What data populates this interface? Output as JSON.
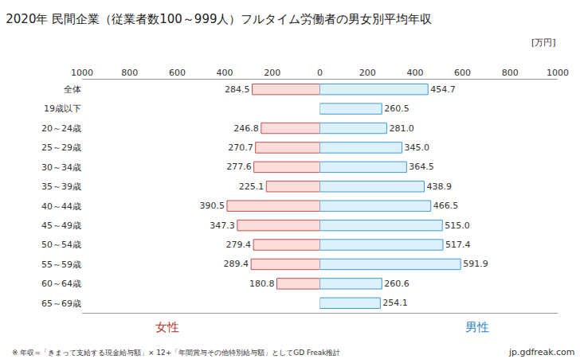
{
  "chart_data": {
    "type": "bar",
    "orientation": "horizontal",
    "title": "2020年 民間企業（従業者数100～999人）フルタイム労働者の男女別平均年収",
    "annotations": [
      "[万円]",
      "※ 年収=「きまって支給する現金給与額」× 12+「年間賞与その他特別給与額」としてGD Freak推計",
      "jp.gdfreak.com"
    ],
    "categories": [
      "全体",
      "19歳以下",
      "20～24歳",
      "25～29歳",
      "30～34歳",
      "35～39歳",
      "40～44歳",
      "45～49歳",
      "50～54歳",
      "55～59歳",
      "60～64歳",
      "65～69歳"
    ],
    "series": [
      {
        "name": "女性",
        "color": "#fadcda",
        "values": [
          284.5,
          null,
          246.8,
          270.7,
          277.6,
          225.1,
          390.5,
          347.3,
          279.4,
          289.4,
          180.8,
          null
        ],
        "value_labels": [
          "284.5",
          null,
          "246.8",
          "270.7",
          "277.6",
          "225.1",
          "390.5",
          "347.3",
          "279.4",
          "289.4",
          "180.8",
          null
        ]
      },
      {
        "name": "男性",
        "color": "#ddf1fb",
        "values": [
          454.7,
          260.5,
          281.0,
          345.0,
          364.5,
          438.9,
          466.5,
          515.0,
          517.4,
          591.9,
          260.6,
          254.1
        ],
        "value_labels": [
          "454.7",
          "260.5",
          "281.0",
          "345.0",
          "364.5",
          "438.9",
          "466.5",
          "515.0",
          "517.4",
          "591.9",
          "260.6",
          "254.1"
        ]
      }
    ],
    "xlim": [
      0,
      1000
    ],
    "xticks": [
      0,
      200,
      400,
      600,
      800,
      1000
    ],
    "data_labels": true,
    "grid": false
  }
}
